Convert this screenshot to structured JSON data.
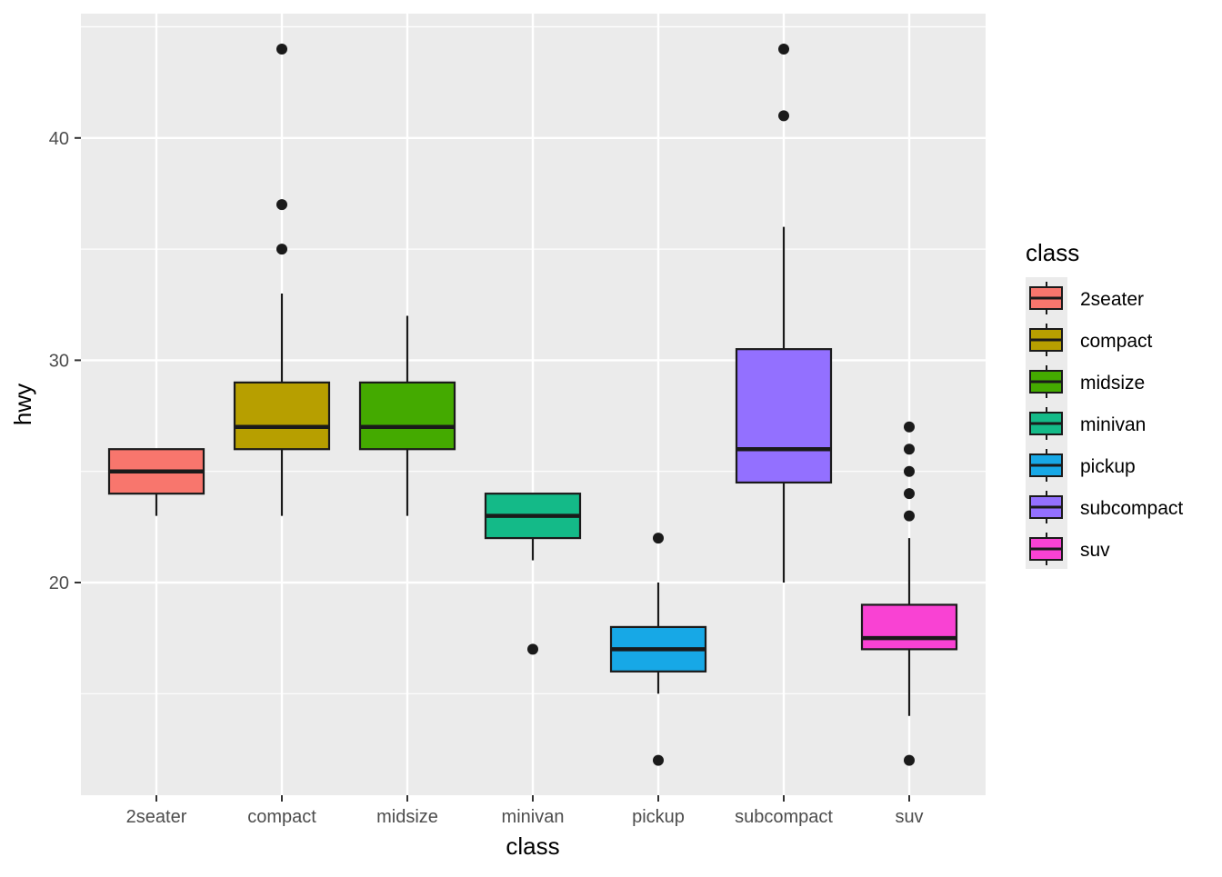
{
  "chart_data": {
    "type": "boxplot",
    "xlabel": "class",
    "ylabel": "hwy",
    "ylim": [
      11,
      45.5
    ],
    "y_ticks": [
      20,
      30,
      40
    ],
    "y_minor_ticks": [
      15,
      25,
      35,
      45
    ],
    "grid": true,
    "legend": {
      "title": "class",
      "placement": "right"
    },
    "categories": [
      "2seater",
      "compact",
      "midsize",
      "minivan",
      "pickup",
      "subcompact",
      "suv"
    ],
    "series": [
      {
        "name": "2seater",
        "color": "#F8766D",
        "whisker_low": 23,
        "q1": 24,
        "median": 25,
        "q3": 26,
        "whisker_high": 26,
        "outliers": []
      },
      {
        "name": "compact",
        "color": "#B79F00",
        "whisker_low": 23,
        "q1": 26,
        "median": 27,
        "q3": 29,
        "whisker_high": 33,
        "outliers": [
          35,
          37,
          44
        ]
      },
      {
        "name": "midsize",
        "color": "#44AA00",
        "whisker_low": 23,
        "q1": 26,
        "median": 27,
        "q3": 29,
        "whisker_high": 32,
        "outliers": []
      },
      {
        "name": "minivan",
        "color": "#14BA88",
        "whisker_low": 21,
        "q1": 22,
        "median": 23,
        "q3": 24,
        "whisker_high": 24,
        "outliers": [
          17
        ]
      },
      {
        "name": "pickup",
        "color": "#17A8E6",
        "whisker_low": 15,
        "q1": 16,
        "median": 17,
        "q3": 18,
        "whisker_high": 20,
        "outliers": [
          12,
          22
        ]
      },
      {
        "name": "subcompact",
        "color": "#9370FF",
        "whisker_low": 20,
        "q1": 24.5,
        "median": 26,
        "q3": 30.5,
        "whisker_high": 36,
        "outliers": [
          41,
          44
        ]
      },
      {
        "name": "suv",
        "color": "#F942D3",
        "whisker_low": 14,
        "q1": 17,
        "median": 17.5,
        "q3": 19,
        "whisker_high": 22,
        "outliers": [
          12,
          23,
          24,
          25,
          26,
          27
        ]
      }
    ]
  }
}
